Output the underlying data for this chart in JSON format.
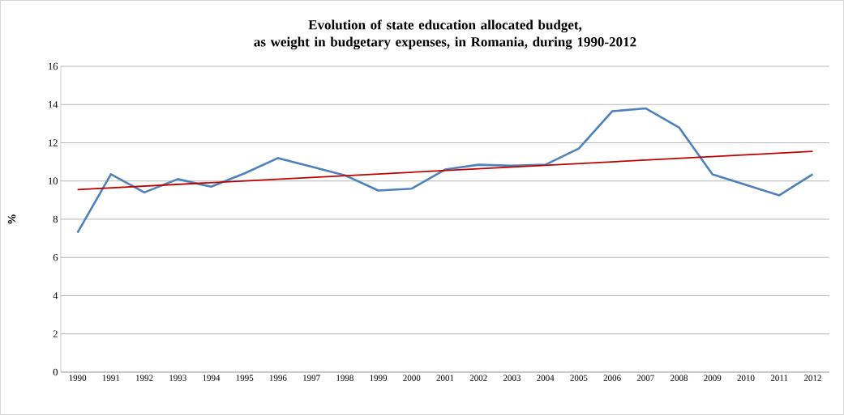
{
  "chart_data": {
    "type": "line",
    "title": "Evolution of state education allocated budget,\nas weight in budgetary expenses, in Romania, during 1990-2012",
    "ylabel": "%",
    "x": [
      1990,
      1991,
      1992,
      1993,
      1994,
      1995,
      1996,
      1997,
      1998,
      1999,
      2000,
      2001,
      2002,
      2003,
      2004,
      2005,
      2006,
      2007,
      2008,
      2009,
      2010,
      2011,
      2012
    ],
    "series": [
      {
        "color": "#4f81bd",
        "values": [
          7.3,
          10.35,
          9.4,
          10.1,
          9.7,
          10.4,
          11.2,
          10.75,
          10.3,
          9.5,
          9.6,
          10.6,
          10.85,
          10.8,
          10.85,
          11.7,
          13.65,
          13.8,
          12.8,
          10.35,
          9.8,
          9.25,
          10.35
        ]
      },
      {
        "type": "line",
        "color": "#c00000",
        "x": [
          1990,
          2012
        ],
        "values": [
          9.55,
          11.55
        ]
      }
    ],
    "xlim": [
      1989.5,
      2012.5
    ],
    "xticks": [
      1990,
      1991,
      1992,
      1993,
      1994,
      1995,
      1996,
      1997,
      1998,
      1999,
      2000,
      2001,
      2002,
      2003,
      2004,
      2005,
      2006,
      2007,
      2008,
      2009,
      2010,
      2011,
      2012
    ],
    "ylim": [
      0,
      16
    ],
    "yticks": [
      0,
      2,
      4,
      6,
      8,
      10,
      12,
      14,
      16
    ],
    "grid": "y",
    "marker": "none",
    "line_style": "solid"
  }
}
